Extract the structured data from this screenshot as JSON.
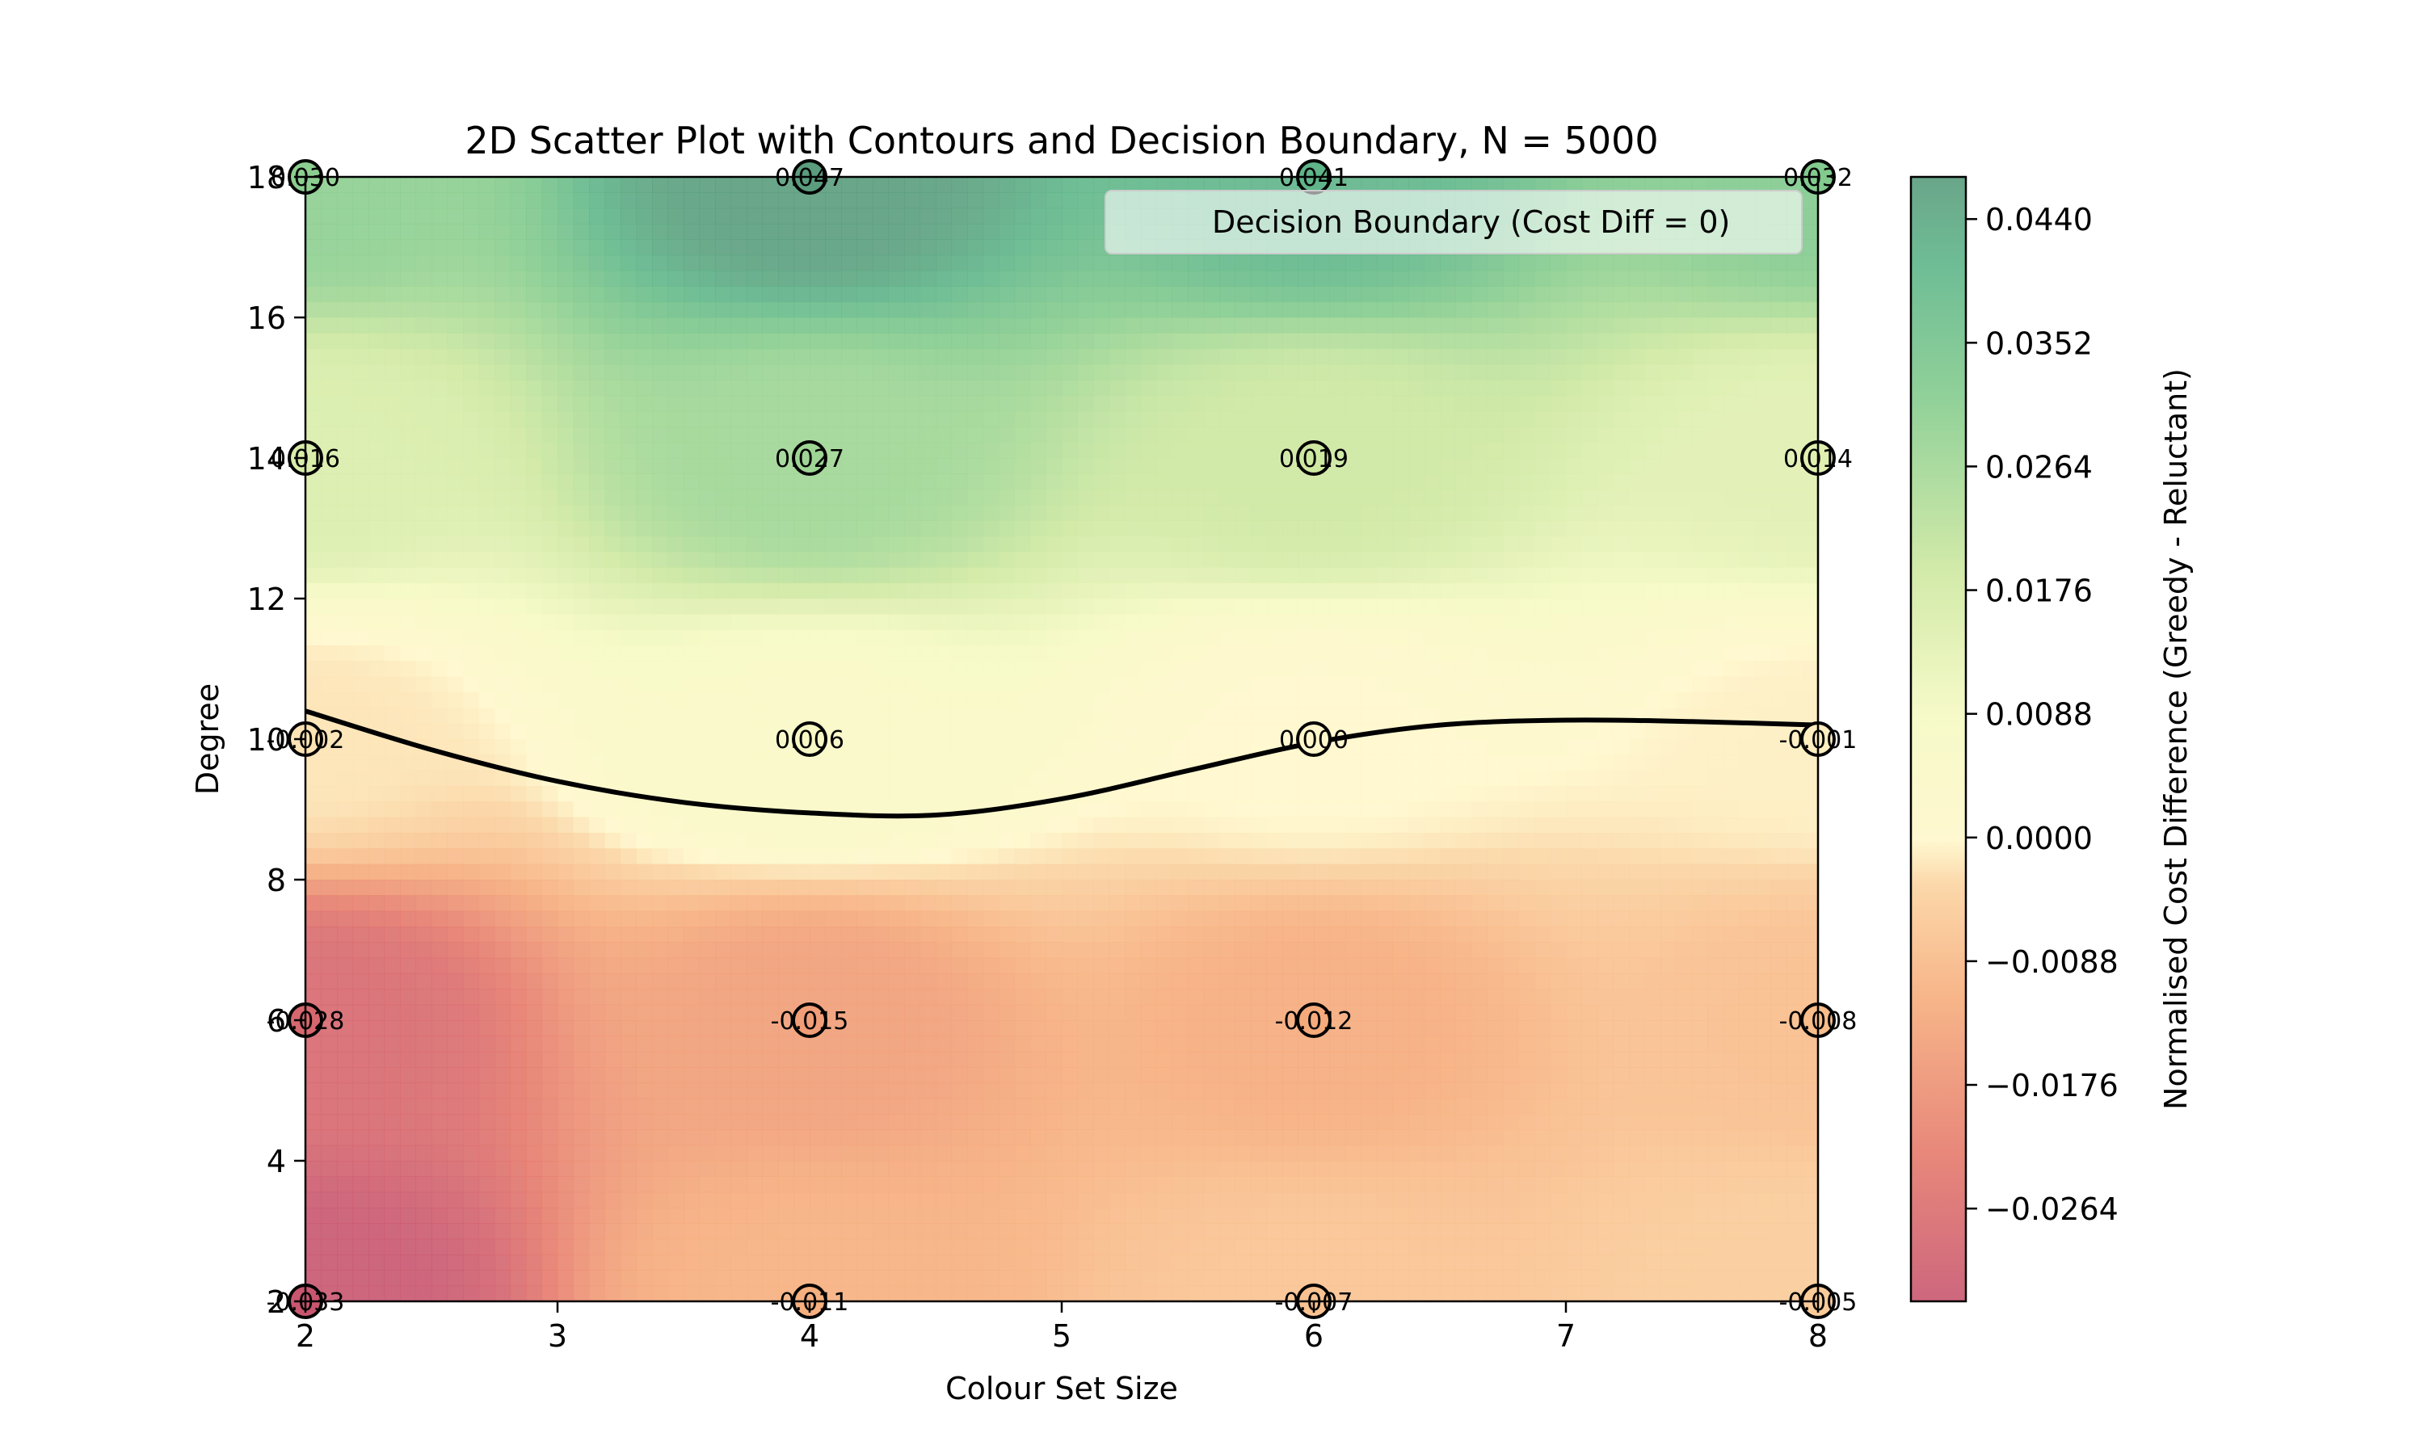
{
  "chart_data": {
    "type": "scatter",
    "title": "2D Scatter Plot with Contours and Decision Boundary, N = 5000",
    "xlabel": "Colour Set Size",
    "ylabel": "Degree",
    "xlim": [
      2,
      8
    ],
    "ylim": [
      2,
      18
    ],
    "xticks": [
      "2",
      "3",
      "4",
      "5",
      "6",
      "7",
      "8"
    ],
    "yticks": [
      "2",
      "4",
      "6",
      "8",
      "10",
      "12",
      "14",
      "16",
      "18"
    ],
    "points": [
      {
        "x": 2,
        "y": 2,
        "value": -0.033,
        "label": "-0.033"
      },
      {
        "x": 4,
        "y": 2,
        "value": -0.011,
        "label": "-0.011"
      },
      {
        "x": 6,
        "y": 2,
        "value": -0.007,
        "label": "-0.007"
      },
      {
        "x": 8,
        "y": 2,
        "value": -0.005,
        "label": "-0.005"
      },
      {
        "x": 2,
        "y": 6,
        "value": -0.028,
        "label": "-0.028"
      },
      {
        "x": 4,
        "y": 6,
        "value": -0.015,
        "label": "-0.015"
      },
      {
        "x": 6,
        "y": 6,
        "value": -0.012,
        "label": "-0.012"
      },
      {
        "x": 8,
        "y": 6,
        "value": -0.008,
        "label": "-0.008"
      },
      {
        "x": 2,
        "y": 10,
        "value": -0.002,
        "label": "-0.002"
      },
      {
        "x": 4,
        "y": 10,
        "value": 0.006,
        "label": "0.006"
      },
      {
        "x": 6,
        "y": 10,
        "value": 0.0,
        "label": "0.000"
      },
      {
        "x": 8,
        "y": 10,
        "value": -0.001,
        "label": "-0.001"
      },
      {
        "x": 2,
        "y": 14,
        "value": 0.016,
        "label": "0.016"
      },
      {
        "x": 4,
        "y": 14,
        "value": 0.027,
        "label": "0.027"
      },
      {
        "x": 6,
        "y": 14,
        "value": 0.019,
        "label": "0.019"
      },
      {
        "x": 8,
        "y": 14,
        "value": 0.014,
        "label": "0.014"
      },
      {
        "x": 2,
        "y": 18,
        "value": 0.03,
        "label": "0.030"
      },
      {
        "x": 4,
        "y": 18,
        "value": 0.047,
        "label": "0.047"
      },
      {
        "x": 6,
        "y": 18,
        "value": 0.041,
        "label": "0.041"
      },
      {
        "x": 8,
        "y": 18,
        "value": 0.032,
        "label": "0.032"
      }
    ],
    "decision_boundary": {
      "label": "Decision Boundary (Cost Diff = 0)",
      "x": [
        2,
        2.5,
        3,
        3.5,
        4,
        4.5,
        5,
        5.5,
        6,
        6.5,
        7,
        7.5,
        8
      ],
      "y": [
        10.4,
        9.85,
        9.4,
        9.1,
        8.95,
        8.92,
        9.15,
        9.55,
        9.95,
        10.2,
        10.27,
        10.25,
        10.2
      ]
    },
    "legend": {
      "position": "upper-right",
      "entries": [
        "Decision Boundary (Cost Diff = 0)"
      ]
    },
    "colorbar": {
      "label": "Normalised Cost Difference (Greedy - Reluctant)",
      "colormap": "RdYlGn",
      "range": [
        -0.033,
        0.047
      ],
      "ticks": [
        -0.0264,
        -0.0176,
        -0.0088,
        0.0,
        0.0088,
        0.0176,
        0.0264,
        0.0352,
        0.044
      ],
      "tick_labels": [
        "−0.0264",
        "−0.0176",
        "−0.0088",
        "0.0000",
        "0.0088",
        "0.0176",
        "0.0264",
        "0.0352",
        "0.0440"
      ]
    },
    "grid": false
  }
}
